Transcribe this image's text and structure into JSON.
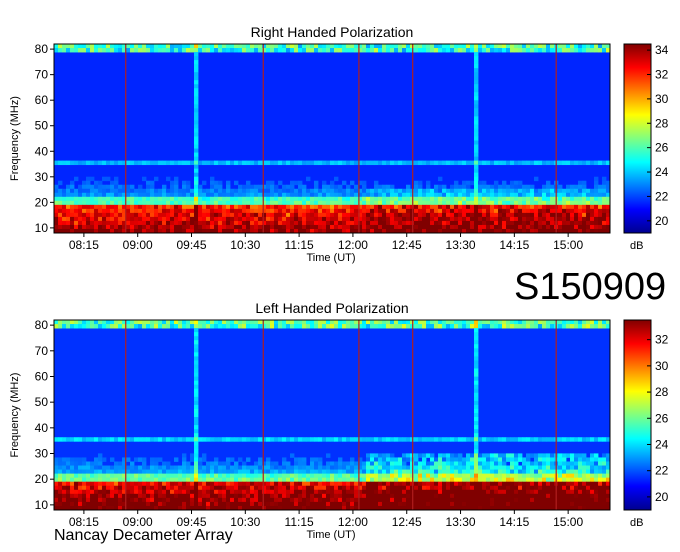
{
  "observation_id": "S150909",
  "instrument": "Nancay Decameter Array",
  "colors": {
    "colormap": [
      "#00008f",
      "#0000ff",
      "#0080ff",
      "#00ffff",
      "#80ff80",
      "#ffff00",
      "#ff8000",
      "#ff0000",
      "#800000"
    ],
    "marker_line": "#b01e1e"
  },
  "chart_data": [
    {
      "type": "heatmap",
      "title": "Right Handed Polarization",
      "xlabel": "Time (UT)",
      "ylabel": "Frequency (MHz)",
      "x_ticks": [
        "08:15",
        "09:00",
        "09:45",
        "10:30",
        "11:15",
        "12:00",
        "12:45",
        "13:30",
        "14:15",
        "15:00"
      ],
      "x_tick_hours": [
        8.25,
        9.0,
        9.75,
        10.5,
        11.25,
        12.0,
        12.75,
        13.5,
        14.25,
        15.0
      ],
      "xlim": [
        "07:50",
        "15:35"
      ],
      "y_ticks": [
        10,
        20,
        30,
        40,
        50,
        60,
        70,
        80
      ],
      "ylim": [
        10,
        80
      ],
      "colorbar": {
        "label": "dB",
        "ticks": [
          20,
          22,
          24,
          26,
          28,
          30,
          32,
          34
        ],
        "range": [
          19,
          34.5
        ]
      },
      "marker_times": [
        "08:50",
        "10:45",
        "12:05",
        "12:50",
        "14:50"
      ],
      "bright_vertical_times": [
        "09:50",
        "13:42"
      ]
    },
    {
      "type": "heatmap",
      "title": "Left Handed Polarization",
      "xlabel": "Time (UT)",
      "ylabel": "Frequency (MHz)",
      "x_ticks": [
        "08:15",
        "09:00",
        "09:45",
        "10:30",
        "11:15",
        "12:00",
        "12:45",
        "13:30",
        "14:15",
        "15:00"
      ],
      "x_tick_hours": [
        8.25,
        9.0,
        9.75,
        10.5,
        11.25,
        12.0,
        12.75,
        13.5,
        14.25,
        15.0
      ],
      "xlim": [
        "07:50",
        "15:35"
      ],
      "y_ticks": [
        10,
        20,
        30,
        40,
        50,
        60,
        70,
        80
      ],
      "ylim": [
        10,
        80
      ],
      "colorbar": {
        "label": "dB",
        "ticks": [
          20,
          22,
          24,
          26,
          28,
          30,
          32
        ],
        "range": [
          19,
          33.5
        ]
      },
      "marker_times": [
        "08:50",
        "10:45",
        "12:05",
        "12:50",
        "14:50"
      ],
      "bright_vertical_times": [
        "09:50",
        "13:42"
      ]
    }
  ]
}
